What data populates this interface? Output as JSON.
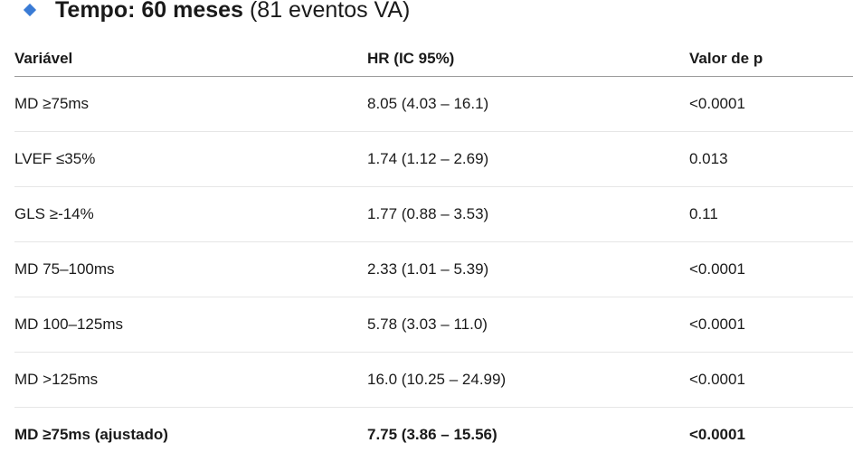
{
  "heading": {
    "title": "Tempo: 60 meses",
    "subtitle": "(81 eventos VA)"
  },
  "table": {
    "columns": [
      "Variável",
      "HR (IC 95%)",
      "Valor de p"
    ],
    "rows": [
      [
        "MD ≥75ms",
        "8.05 (4.03 – 16.1)",
        "<0.0001"
      ],
      [
        "LVEF ≤35%",
        "1.74 (1.12 – 2.69)",
        "0.013"
      ],
      [
        "GLS ≥-14%",
        "1.77 (0.88 – 3.53)",
        "0.11"
      ],
      [
        "MD 75–100ms",
        "2.33 (1.01 – 5.39)",
        "<0.0001"
      ],
      [
        "MD 100–125ms",
        "5.78 (3.03 – 11.0)",
        "<0.0001"
      ],
      [
        "MD >125ms",
        "16.0 (10.25 – 24.99)",
        "<0.0001"
      ],
      [
        "MD ≥75ms (ajustado)",
        "7.75 (3.86 – 15.56)",
        "<0.0001"
      ]
    ]
  }
}
